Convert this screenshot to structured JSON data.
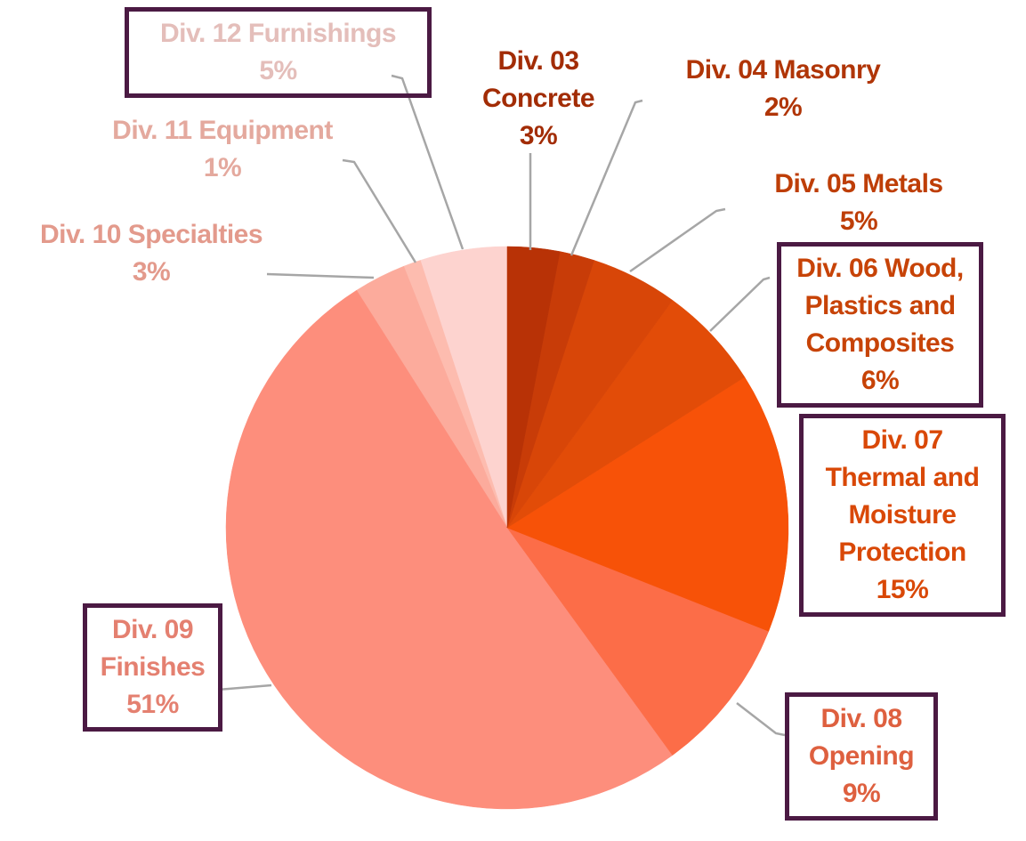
{
  "chart_data": {
    "type": "pie",
    "categories": [
      "Div. 03 Concrete",
      "Div. 04 Masonry",
      "Div. 05 Metals",
      "Div. 06 Wood, Plastics and Composites",
      "Div. 07 Thermal and Moisture Protection",
      "Div. 08 Opening",
      "Div. 09 Finishes",
      "Div. 10 Specialties",
      "Div. 11 Equipment",
      "Div. 12 Furnishings"
    ],
    "values": [
      3,
      2,
      5,
      6,
      15,
      9,
      51,
      3,
      1,
      5
    ],
    "value_labels": [
      "3%",
      "2%",
      "5%",
      "6%",
      "15%",
      "9%",
      "51%",
      "3%",
      "1%",
      "5%"
    ],
    "colors": [
      "#b83206",
      "#c83c08",
      "#d84608",
      "#e24c08",
      "#f75208",
      "#fc6d48",
      "#fd8e7c",
      "#fcab9c",
      "#fdbcaf",
      "#fdd3cf"
    ]
  }
}
